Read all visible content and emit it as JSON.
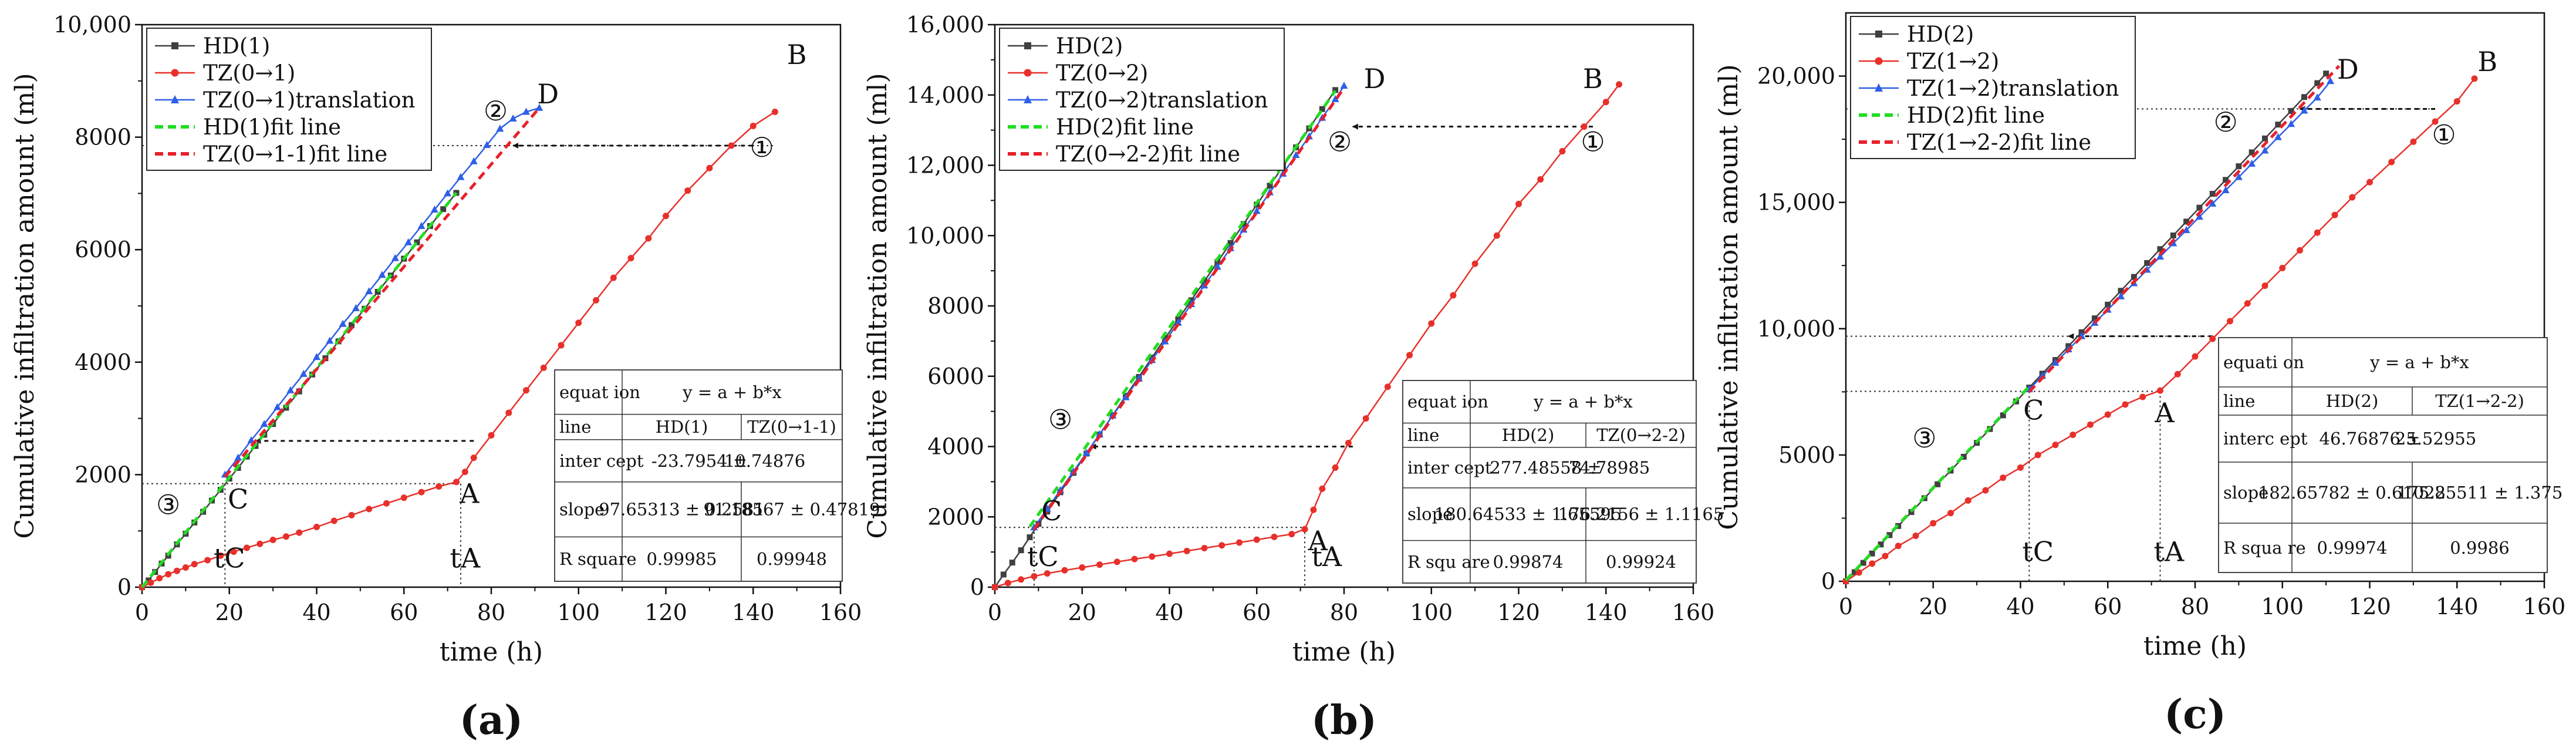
{
  "chart_data": [
    {
      "type": "line",
      "panel_label": "(a)",
      "xlabel": "time (h)",
      "ylabel": "Cumulative infiltration amount (ml)",
      "xlim": [
        0,
        160
      ],
      "ylim": [
        0,
        10000
      ],
      "xticks": [
        0,
        20,
        40,
        60,
        80,
        100,
        120,
        140,
        160
      ],
      "yticks": [
        0,
        2000,
        4000,
        6000,
        8000,
        10000
      ],
      "ytick_labels": [
        "0",
        "2000",
        "4000",
        "6000",
        "8000",
        "10,000"
      ],
      "xtick_labels": [
        "0",
        "20",
        "40",
        "60",
        "80",
        "100",
        "120",
        "140",
        "160"
      ],
      "series": [
        {
          "name": "HD(1)",
          "color": "#404040",
          "marker": "square",
          "x": [
            0,
            1.5,
            3,
            4.5,
            6,
            8,
            10,
            12,
            14,
            16,
            18,
            20,
            22,
            24,
            26,
            28,
            30,
            33,
            36,
            39,
            42,
            45,
            48,
            51,
            54,
            57,
            60,
            63,
            66,
            69,
            72
          ],
          "y": [
            0,
            120,
            270,
            420,
            560,
            760,
            950,
            1150,
            1340,
            1540,
            1730,
            1930,
            2120,
            2320,
            2510,
            2710,
            2900,
            3190,
            3480,
            3780,
            4070,
            4370,
            4660,
            4950,
            5250,
            5540,
            5840,
            6130,
            6420,
            6720,
            7010
          ]
        },
        {
          "name": "TZ(0→1)",
          "color": "#e8302b",
          "marker": "circle",
          "x": [
            0,
            2,
            4,
            6,
            8,
            10,
            12,
            15,
            18,
            21,
            24,
            27,
            30,
            33,
            36,
            40,
            44,
            48,
            52,
            56,
            60,
            64,
            68,
            72,
            74,
            76,
            80,
            84,
            88,
            92,
            96,
            100,
            104,
            108,
            112,
            116,
            120,
            125,
            130,
            135,
            140,
            145
          ],
          "y": [
            0,
            80,
            160,
            230,
            290,
            350,
            410,
            480,
            560,
            630,
            700,
            770,
            840,
            900,
            970,
            1070,
            1180,
            1280,
            1390,
            1490,
            1590,
            1690,
            1790,
            1870,
            2050,
            2300,
            2700,
            3100,
            3500,
            3900,
            4300,
            4700,
            5100,
            5500,
            5850,
            6200,
            6600,
            7050,
            7450,
            7850,
            8200,
            8450
          ]
        },
        {
          "name": "TZ(0→1)translation",
          "color": "#2f5fe6",
          "marker": "triangle",
          "x": [
            19,
            22,
            25,
            28,
            31,
            34,
            37,
            40,
            43,
            46,
            49,
            52,
            55,
            58,
            61,
            64,
            67,
            70,
            73,
            76,
            79,
            82,
            85,
            88,
            91
          ],
          "y": [
            2000,
            2300,
            2610,
            2900,
            3200,
            3500,
            3790,
            4090,
            4380,
            4680,
            4960,
            5260,
            5550,
            5850,
            6130,
            6420,
            6710,
            7000,
            7290,
            7570,
            7860,
            8150,
            8330,
            8450,
            8520
          ]
        },
        {
          "name": "HD(1)fit line",
          "color": "#22dd22",
          "style": "dashed",
          "x": [
            0,
            72
          ],
          "y": [
            0,
            7010
          ]
        },
        {
          "name": "TZ(0→1-1)fit line",
          "color": "#e8202b",
          "style": "dashed",
          "x": [
            19,
            91
          ],
          "y": [
            1960,
            8520
          ]
        }
      ],
      "annotations": [
        "B",
        "D",
        "A",
        "C",
        "①",
        "②",
        "③",
        "tC",
        "tA"
      ],
      "fit_table": {
        "title": "y = a + b*x",
        "rows": [
          [
            "equat ion",
            "y = a + b*x",
            ""
          ],
          [
            "line",
            "HD(1)",
            "TZ(0→1-1)"
          ],
          [
            "inter cept",
            "-23.7954 ±",
            "10.74876"
          ],
          [
            "slope",
            "97.65313 ± 0.2581",
            "91.18567 ± 0.47819"
          ],
          [
            "R square",
            "0.99985",
            "0.99948"
          ]
        ]
      }
    },
    {
      "type": "line",
      "panel_label": "(b)",
      "xlabel": "time (h)",
      "ylabel": "Cumulative infiltration amount (ml)",
      "xlim": [
        0,
        160
      ],
      "ylim": [
        0,
        16000
      ],
      "xticks": [
        0,
        20,
        40,
        60,
        80,
        100,
        120,
        140,
        160
      ],
      "yticks": [
        0,
        2000,
        4000,
        6000,
        8000,
        10000,
        12000,
        14000,
        16000
      ],
      "ytick_labels": [
        "0",
        "2000",
        "4000",
        "6000",
        "8000",
        "10,000",
        "12,000",
        "14,000",
        "16,000"
      ],
      "xtick_labels": [
        "0",
        "20",
        "40",
        "60",
        "80",
        "100",
        "120",
        "140",
        "160"
      ],
      "series": [
        {
          "name": "HD(2)",
          "color": "#404040",
          "marker": "square",
          "x": [
            0,
            2,
            4,
            6,
            8,
            10,
            12,
            15,
            18,
            21,
            24,
            27,
            30,
            33,
            36,
            39,
            42,
            45,
            48,
            51,
            54,
            57,
            60,
            63,
            66,
            69,
            72,
            75,
            78
          ],
          "y": [
            0,
            360,
            700,
            1050,
            1420,
            1800,
            2150,
            2700,
            3250,
            3800,
            4340,
            4890,
            5440,
            5980,
            6530,
            7080,
            7620,
            8160,
            8700,
            9250,
            9790,
            10330,
            10880,
            11420,
            11970,
            12510,
            13050,
            13600,
            14140
          ]
        },
        {
          "name": "TZ(0→2)",
          "color": "#e8302b",
          "marker": "circle",
          "x": [
            0,
            3,
            6,
            9,
            12,
            16,
            20,
            24,
            28,
            32,
            36,
            40,
            44,
            48,
            52,
            56,
            60,
            64,
            68,
            71,
            73,
            75,
            78,
            81,
            85,
            90,
            95,
            100,
            105,
            110,
            115,
            120,
            125,
            130,
            135,
            140,
            143
          ],
          "y": [
            0,
            120,
            220,
            310,
            390,
            480,
            560,
            640,
            720,
            800,
            870,
            950,
            1030,
            1110,
            1190,
            1270,
            1350,
            1430,
            1510,
            1650,
            2200,
            2800,
            3400,
            4100,
            4800,
            5700,
            6600,
            7500,
            8300,
            9200,
            10000,
            10900,
            11600,
            12400,
            13100,
            13800,
            14300
          ]
        },
        {
          "name": "TZ(0→2)translation",
          "color": "#2f5fe6",
          "marker": "triangle",
          "x": [
            9,
            12,
            15,
            18,
            21,
            24,
            27,
            30,
            33,
            36,
            39,
            42,
            45,
            48,
            51,
            54,
            57,
            60,
            63,
            66,
            69,
            72,
            75,
            78,
            80
          ],
          "y": [
            1700,
            2230,
            2760,
            3290,
            3820,
            4350,
            4880,
            5400,
            5930,
            6460,
            6990,
            7520,
            8050,
            8580,
            9110,
            9640,
            10170,
            10700,
            11230,
            11760,
            12290,
            12820,
            13350,
            13880,
            14260
          ]
        },
        {
          "name": "HD(2)fit line",
          "color": "#22dd22",
          "style": "dashed",
          "x": [
            8,
            78
          ],
          "y": [
            1720,
            14120
          ]
        },
        {
          "name": "TZ(0→2-2)fit line",
          "color": "#e8202b",
          "style": "dashed",
          "x": [
            9,
            80
          ],
          "y": [
            1640,
            14200
          ]
        }
      ],
      "annotations": [
        "B",
        "D",
        "A",
        "C",
        "①",
        "②",
        "③",
        "tC",
        "tA"
      ],
      "fit_table": {
        "title": "y = a + b*x",
        "rows": [
          [
            "equat ion",
            "y = a + b*x",
            ""
          ],
          [
            "line",
            "HD(2)",
            "TZ(0→2-2)"
          ],
          [
            "inter cept",
            "277.48558 ±",
            "74.78985"
          ],
          [
            "slope",
            "180.64533 ± 1.65595",
            "176.2156 ± 1.1165"
          ],
          [
            "R squ are",
            "0.99874",
            "0.99924"
          ]
        ]
      }
    },
    {
      "type": "line",
      "panel_label": "(c)",
      "xlabel": "time (h)",
      "ylabel": "Cumulative infiltration amount (ml)",
      "xlim": [
        0,
        160
      ],
      "ylim": [
        0,
        22500
      ],
      "xticks": [
        0,
        20,
        40,
        60,
        80,
        100,
        120,
        140,
        160
      ],
      "yticks": [
        0,
        5000,
        10000,
        15000,
        20000
      ],
      "ytick_labels": [
        "0",
        "5000",
        "10,000",
        "15,000",
        "20,000"
      ],
      "xtick_labels": [
        "0",
        "20",
        "40",
        "60",
        "80",
        "100",
        "120",
        "140",
        "160"
      ],
      "series": [
        {
          "name": "HD(2)",
          "color": "#404040",
          "marker": "square",
          "x": [
            0,
            2,
            4,
            6,
            8,
            10,
            12,
            15,
            18,
            21,
            24,
            27,
            30,
            33,
            36,
            39,
            42,
            45,
            48,
            51,
            54,
            57,
            60,
            63,
            66,
            69,
            72,
            75,
            78,
            81,
            84,
            87,
            90,
            93,
            96,
            99,
            102,
            105,
            108,
            110
          ],
          "y": [
            0,
            360,
            730,
            1100,
            1460,
            1830,
            2190,
            2740,
            3290,
            3840,
            4380,
            4930,
            5480,
            6030,
            6570,
            7120,
            7670,
            8220,
            8760,
            9310,
            9860,
            10410,
            10950,
            11500,
            12050,
            12600,
            13150,
            13690,
            14240,
            14790,
            15340,
            15890,
            16430,
            16980,
            17530,
            18080,
            18620,
            19170,
            19720,
            20100
          ]
        },
        {
          "name": "TZ(1→2)",
          "color": "#e8302b",
          "marker": "circle",
          "x": [
            0,
            3,
            6,
            9,
            12,
            16,
            20,
            24,
            28,
            32,
            36,
            40,
            44,
            48,
            52,
            56,
            60,
            64,
            68,
            72,
            76,
            80,
            84,
            88,
            92,
            96,
            100,
            104,
            108,
            112,
            116,
            120,
            125,
            130,
            135,
            140,
            144
          ],
          "y": [
            0,
            350,
            700,
            1000,
            1400,
            1800,
            2300,
            2700,
            3200,
            3600,
            4100,
            4500,
            5000,
            5400,
            5800,
            6200,
            6600,
            7000,
            7300,
            7550,
            8200,
            8900,
            9600,
            10300,
            11000,
            11700,
            12400,
            13100,
            13800,
            14500,
            15200,
            15800,
            16600,
            17400,
            18200,
            19000,
            19900
          ]
        },
        {
          "name": "TZ(1→2)translation",
          "color": "#2f5fe6",
          "marker": "triangle",
          "x": [
            42,
            45,
            48,
            51,
            54,
            57,
            60,
            63,
            66,
            69,
            72,
            75,
            78,
            81,
            84,
            87,
            90,
            93,
            96,
            99,
            102,
            105,
            108,
            111
          ],
          "y": [
            7600,
            8130,
            8650,
            9180,
            9700,
            10230,
            10750,
            11280,
            11800,
            12330,
            12850,
            13380,
            13900,
            14430,
            14950,
            15480,
            16000,
            16530,
            17050,
            17580,
            18100,
            18630,
            19150,
            19800
          ]
        },
        {
          "name": "HD(2)fit line",
          "color": "#22dd22",
          "style": "dashed",
          "x": [
            0,
            42
          ],
          "y": [
            47,
            7720
          ]
        },
        {
          "name": "TZ(1→2-2)fit line",
          "color": "#e8202b",
          "style": "dashed",
          "x": [
            42,
            113
          ],
          "y": [
            7500,
            20400
          ]
        }
      ],
      "annotations": [
        "B",
        "D",
        "A",
        "C",
        "①",
        "②",
        "③",
        "tC",
        "tA"
      ],
      "fit_table": {
        "title": "y = a + b*x",
        "rows": [
          [
            "equati on",
            "y = a + b*x",
            ""
          ],
          [
            "line",
            "HD(2)",
            "TZ(1→2-2)"
          ],
          [
            "interc ept",
            "46.76876 ±",
            "25.52955"
          ],
          [
            "slope",
            "182.65782 ± 0.61022",
            "175.85511 ± 1.375"
          ],
          [
            "R squa re",
            "0.99974",
            "0.9986"
          ]
        ]
      }
    }
  ]
}
